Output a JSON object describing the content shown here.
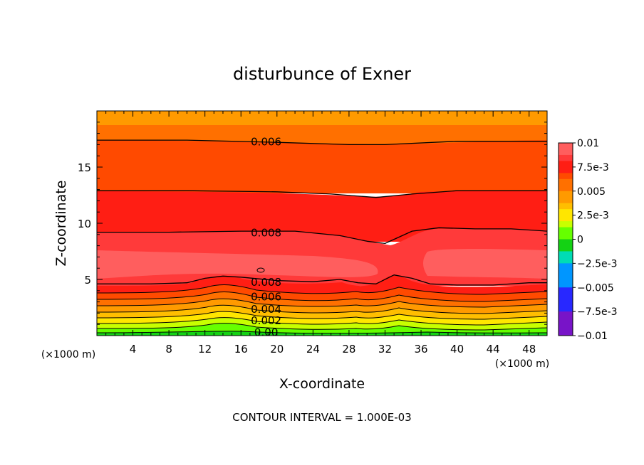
{
  "chart_data": {
    "type": "contour",
    "title": "disturbunce of Exner",
    "xlabel": "X-coordinate",
    "ylabel": "Z-coordinate",
    "x_unit_label": "(×1000 m)",
    "xlim": [
      0,
      50
    ],
    "ylim": [
      0,
      20
    ],
    "x_ticks": [
      4,
      8,
      12,
      16,
      20,
      24,
      28,
      32,
      36,
      40,
      44,
      48
    ],
    "y_ticks": [
      5,
      10,
      15
    ],
    "footer": "CONTOUR INTERVAL = 1.000E-03",
    "contour_interval": 0.001,
    "colorbar": {
      "min": -0.01,
      "max": 0.01,
      "tick_values": [
        0.01,
        0.0075,
        0.005,
        0.0025,
        0,
        -0.0025,
        -0.005,
        -0.0075,
        -0.01
      ],
      "tick_labels": [
        "0.01",
        "7.5e-3",
        "0.005",
        "2.5e-3",
        "0",
        "−2.5e-3",
        "−0.005",
        "−7.5e-3",
        "−0.01"
      ]
    },
    "colors": {
      "0.0100": "#ff8a8a",
      "0.0090": "#ff5e5e",
      "0.0080": "#ff3a3a",
      "0.0070": "#ff1e14",
      "0.0060": "#ff4a00",
      "0.0050": "#ff7000",
      "0.0040": "#ff9a00",
      "0.0030": "#ffbe00",
      "0.0020": "#ffe600",
      "0.0010": "#c8ff00",
      "0.0000": "#66ff00",
      "-0.0010": "#14d214",
      "-0.0025": "#00dcb4",
      "-0.0050": "#0096ff",
      "-0.0075": "#2828ff",
      "-0.0100": "#7814c8"
    },
    "contour_labels": [
      {
        "text": "0.006",
        "x": 18.8,
        "z": 17.3
      },
      {
        "text": "0.008",
        "x": 18.8,
        "z": 9.2
      },
      {
        "text": "0.008",
        "x": 18.8,
        "z": 4.8
      },
      {
        "text": "0.006",
        "x": 18.8,
        "z": 3.5
      },
      {
        "text": "0.004",
        "x": 18.8,
        "z": 2.4
      },
      {
        "text": "0.002",
        "x": 18.8,
        "z": 1.4
      },
      {
        "text": "0.00",
        "x": 18.8,
        "z": 0.35
      }
    ],
    "contours": [
      {
        "level": 0.006,
        "x": [
          0,
          10,
          20,
          28,
          32,
          40,
          50
        ],
        "z": [
          17.4,
          17.4,
          17.2,
          17.0,
          17.0,
          17.3,
          17.3
        ]
      },
      {
        "level": 0.007,
        "x": [
          0,
          10,
          20,
          26,
          31,
          35,
          40,
          50
        ],
        "z": [
          12.9,
          12.9,
          12.8,
          12.6,
          12.3,
          12.6,
          12.9,
          12.9
        ]
      },
      {
        "level": 0.008,
        "x": [
          0,
          8,
          16,
          22,
          27,
          30,
          32,
          35,
          38,
          42,
          46,
          50
        ],
        "z": [
          9.2,
          9.2,
          9.3,
          9.3,
          8.9,
          8.4,
          8.2,
          9.3,
          9.6,
          9.5,
          9.5,
          9.3
        ]
      },
      {
        "level": 0.008,
        "x": [
          0,
          6,
          10,
          12,
          14,
          16,
          20,
          24,
          27,
          29,
          31,
          33,
          35,
          37,
          40,
          44,
          48,
          50
        ],
        "z": [
          4.6,
          4.6,
          4.7,
          5.1,
          5.3,
          5.2,
          4.9,
          4.8,
          5.0,
          4.7,
          4.6,
          5.4,
          5.1,
          4.6,
          4.5,
          4.5,
          4.7,
          4.7
        ]
      }
    ],
    "bands_note": "Shaded contour field; horizontally layered bands increasing from ~0 near the surface to ~0.009 around z=5-9 km, decreasing to ~0.005 at top. Maximum pockets near z=6-7 km on left and right, disturbed near x=14 and x=33."
  }
}
